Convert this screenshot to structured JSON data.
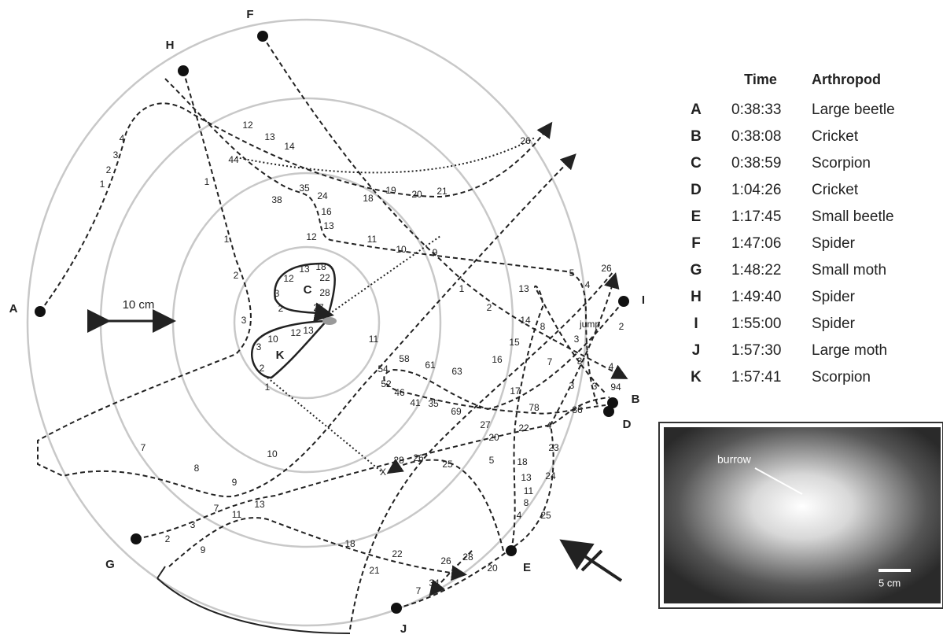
{
  "figure": {
    "markers": [
      "A",
      "B",
      "C",
      "D",
      "E",
      "F",
      "G",
      "H",
      "I",
      "J",
      "K"
    ],
    "scale_label": "10 cm",
    "track_labels": [
      "1",
      "2",
      "3",
      "4",
      "12",
      "13",
      "14",
      "44",
      "38",
      "35",
      "24",
      "16",
      "13",
      "12",
      "11",
      "10",
      "9",
      "19",
      "20",
      "21",
      "18",
      "26",
      "1",
      "1",
      "2",
      "3",
      "12",
      "13",
      "18",
      "22",
      "3",
      "2",
      "28",
      "27",
      "10",
      "12",
      "13",
      "3",
      "2",
      "1",
      "11",
      "1",
      "2",
      "5",
      "4",
      "26",
      "13",
      "14",
      "8",
      "15",
      "16",
      "7",
      "3",
      "3",
      "3",
      "3",
      "4",
      "jump",
      "2",
      "94",
      "86",
      "78",
      "17",
      "22",
      "4",
      "27",
      "20",
      "69",
      "54",
      "58",
      "61",
      "63",
      "52",
      "46",
      "41",
      "35",
      "28",
      "26",
      "25",
      "5",
      "23",
      "18",
      "13",
      "24",
      "11",
      "8",
      "4",
      "25",
      "10",
      "7",
      "8",
      "9",
      "13",
      "7",
      "11",
      "3",
      "2",
      "9",
      "18",
      "22",
      "26",
      "28",
      "20",
      "21",
      "34",
      "7",
      "X"
    ]
  },
  "table": {
    "header": [
      "Time",
      "Arthropod"
    ],
    "rows": [
      [
        "A",
        "0:38:33",
        "Large beetle"
      ],
      [
        "B",
        "0:38:08",
        "Cricket"
      ],
      [
        "C",
        "0:38:59",
        "Scorpion"
      ],
      [
        "D",
        "1:04:26",
        "Cricket"
      ],
      [
        "E",
        "1:17:45",
        "Small beetle"
      ],
      [
        "F",
        "1:47:06",
        "Spider"
      ],
      [
        "G",
        "1:48:22",
        "Small moth"
      ],
      [
        "H",
        "1:49:40",
        "Spider"
      ],
      [
        "I",
        "1:55:00",
        "Spider"
      ],
      [
        "J",
        "1:57:30",
        "Large moth"
      ],
      [
        "K",
        "1:57:41",
        "Scorpion"
      ]
    ]
  },
  "inset": {
    "burrow_label": "burrow",
    "scale_label": "5 cm"
  }
}
